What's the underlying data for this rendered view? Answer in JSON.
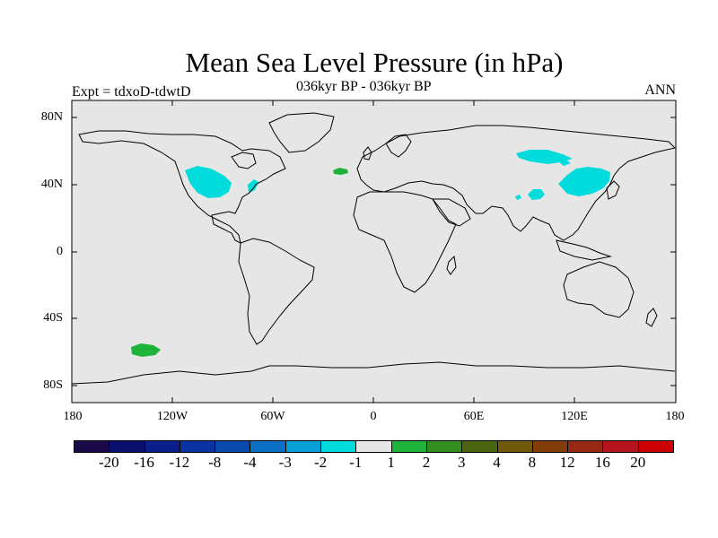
{
  "title": "Mean Sea Level Pressure (in hPa)",
  "subtitle": "036kyr BP - 036kyr BP",
  "left_label": "Expt = tdxoD-tdwtD",
  "right_label": "ANN",
  "lat_ticks": [
    "80N",
    "40N",
    "0",
    "40S",
    "80S"
  ],
  "lon_ticks": [
    "180",
    "120W",
    "60W",
    "0",
    "60E",
    "120E",
    "180"
  ],
  "map_colors": {
    "ocean": "#e6e6e6",
    "coast": "#000000"
  },
  "colorbar": {
    "colors": [
      "#1a0a4a",
      "#0a0f6e",
      "#0a1f8c",
      "#0a32a0",
      "#0a4aad",
      "#0a6ec2",
      "#0a9ed6",
      "#00dcdc",
      "#e6e6e6",
      "#1eb43c",
      "#328c1e",
      "#4b6410",
      "#6e5a0a",
      "#823c0a",
      "#962814",
      "#b4141e",
      "#cc0000"
    ],
    "labels": [
      "-20",
      "-16",
      "-12",
      "-8",
      "-4",
      "-3",
      "-2",
      "-1",
      "1",
      "2",
      "3",
      "4",
      "8",
      "12",
      "16",
      "20"
    ]
  },
  "regions": [
    {
      "name": "western-north-america",
      "color": "#00dcdc"
    },
    {
      "name": "great-lakes",
      "color": "#00dcdc"
    },
    {
      "name": "north-atlantic",
      "color": "#1eb43c"
    },
    {
      "name": "siberia",
      "color": "#00dcdc"
    },
    {
      "name": "tibet",
      "color": "#00dcdc"
    },
    {
      "name": "east-asia",
      "color": "#00dcdc"
    },
    {
      "name": "south-pacific",
      "color": "#1eb43c"
    }
  ]
}
